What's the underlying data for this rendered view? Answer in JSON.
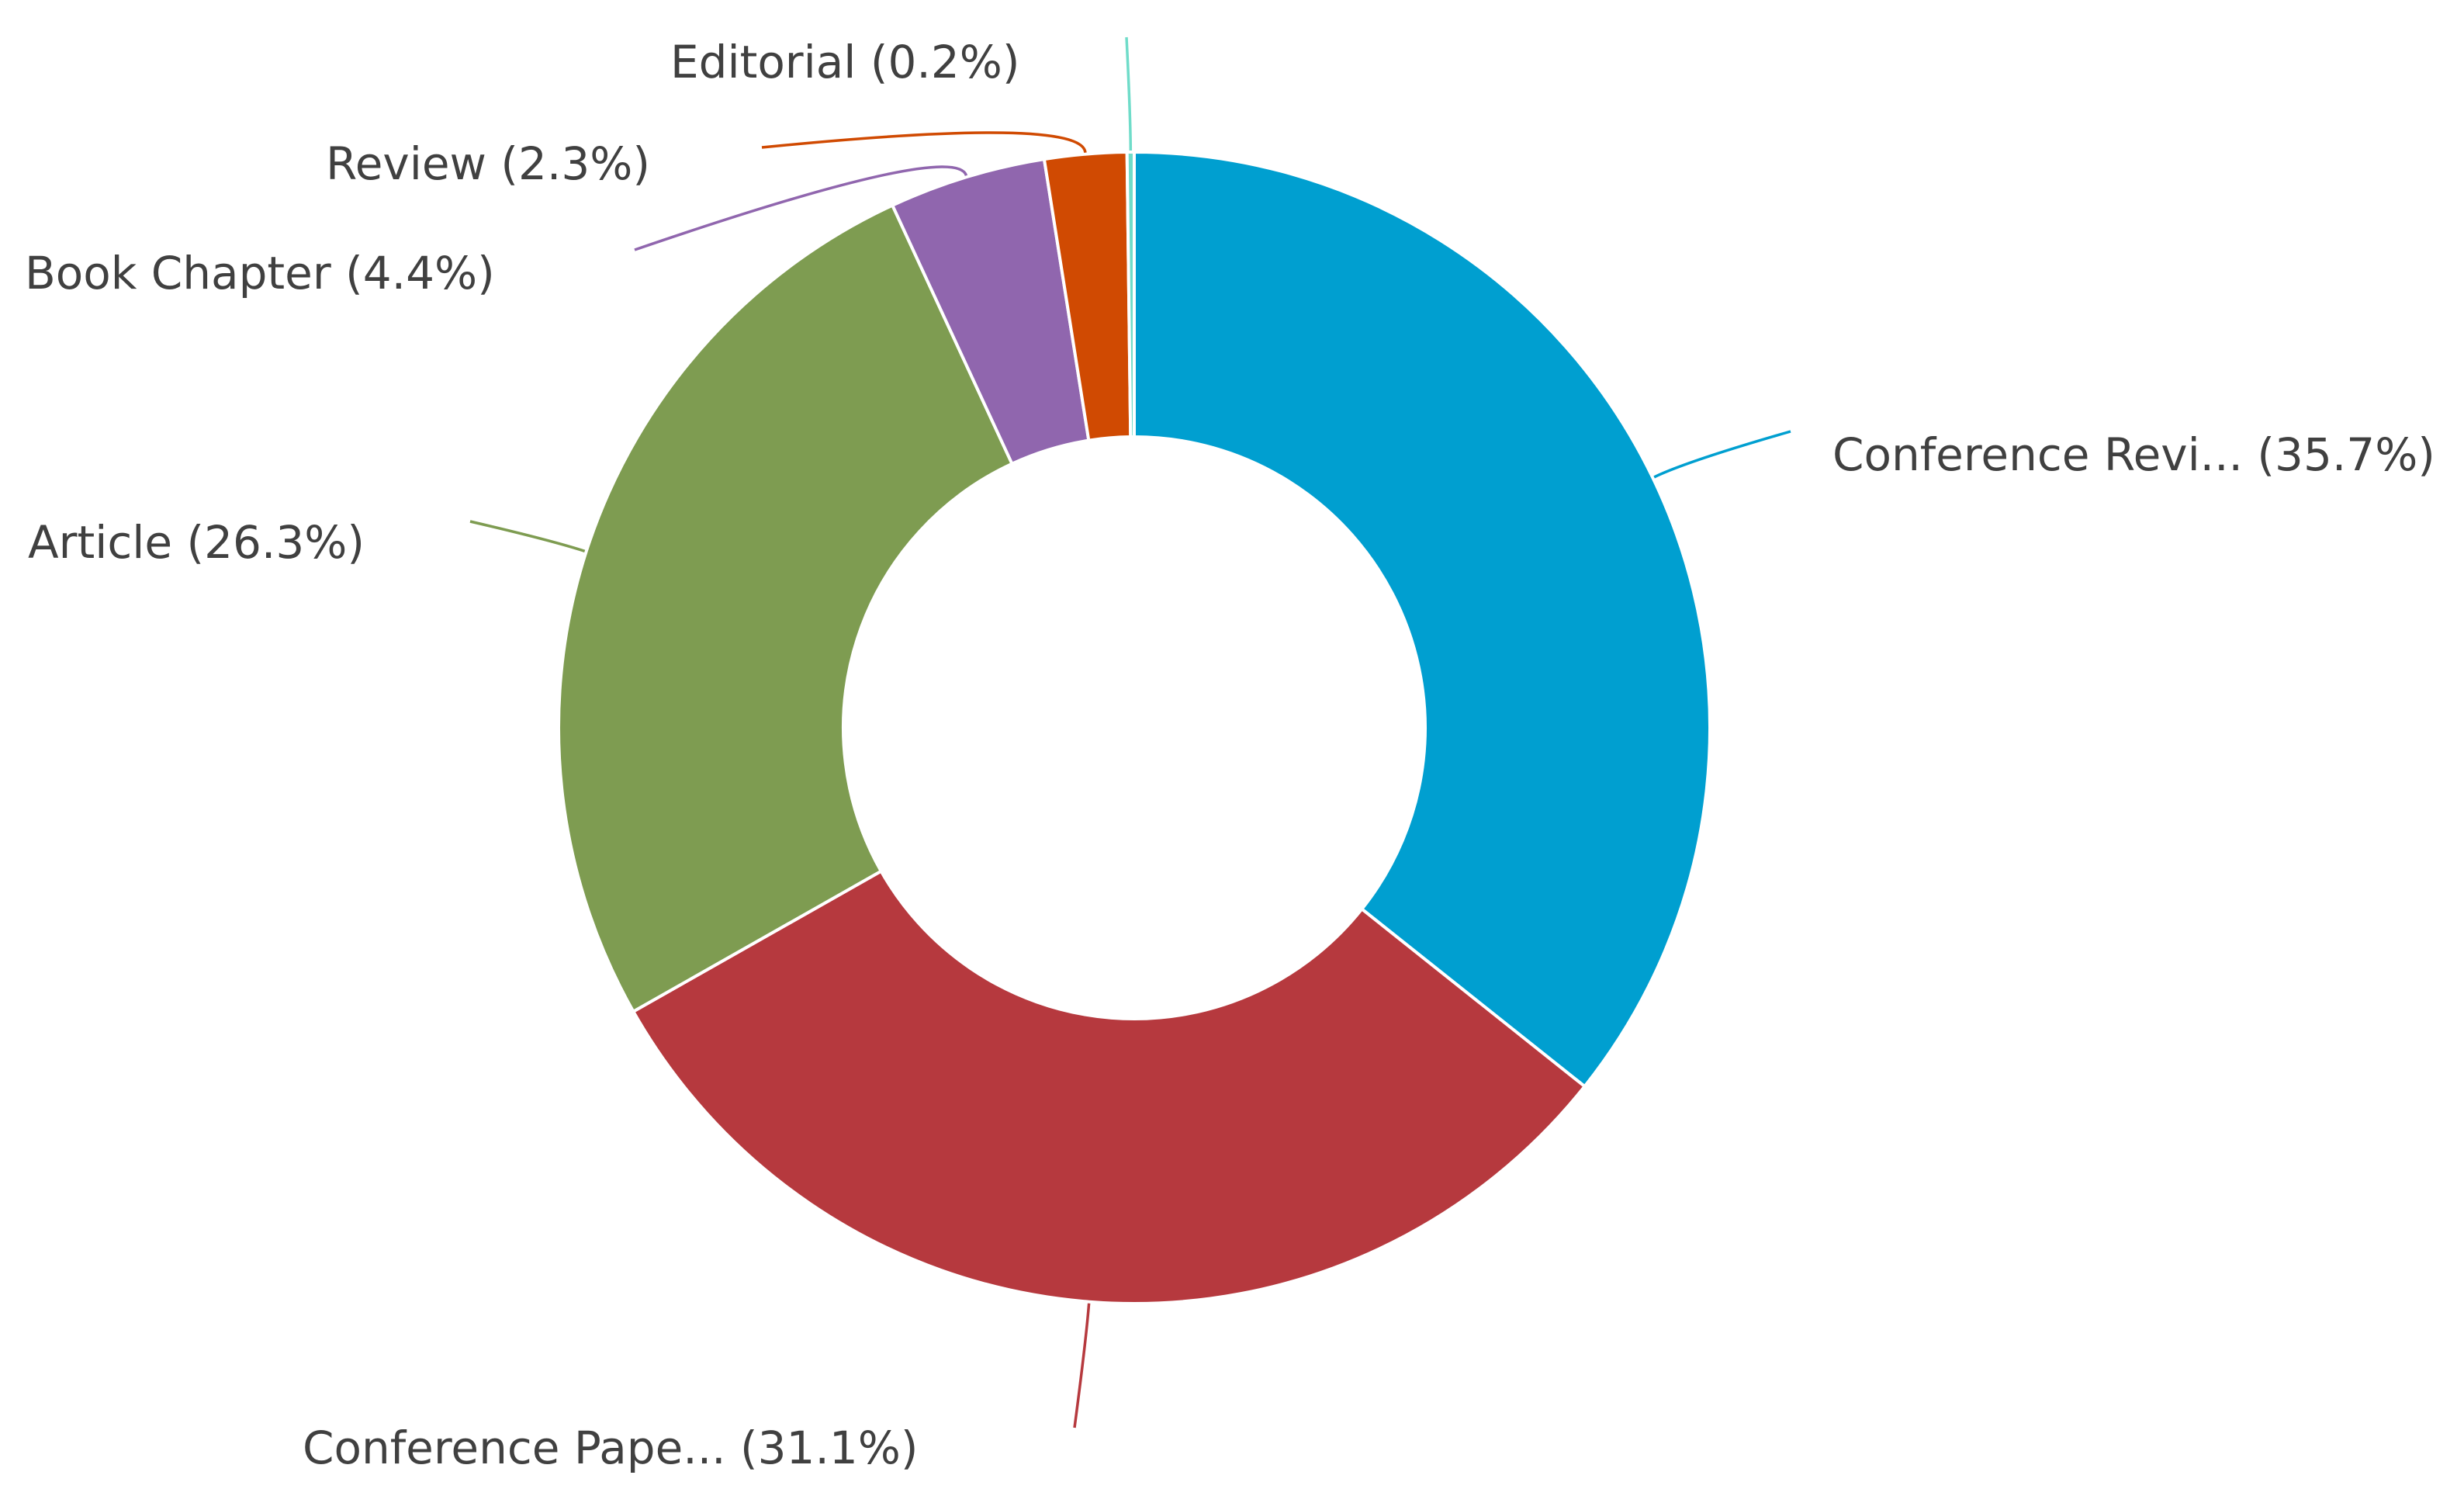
{
  "chart_data": {
    "type": "pie",
    "variant": "donut",
    "slices": [
      {
        "label": "Conference Revi... (35.7%)",
        "category": "Conference Revi...",
        "value": 35.7,
        "color": "#009fd0"
      },
      {
        "label": "Conference Pape... (31.1%)",
        "category": "Conference Pape...",
        "value": 31.1,
        "color": "#b6393e"
      },
      {
        "label": "Article (26.3%)",
        "category": "Article",
        "value": 26.3,
        "color": "#7e9c51"
      },
      {
        "label": "Book Chapter (4.4%)",
        "category": "Book Chapter",
        "value": 4.4,
        "color": "#9066ae"
      },
      {
        "label": "Review (2.3%)",
        "category": "Review",
        "value": 2.3,
        "color": "#d04a02"
      },
      {
        "label": "Editorial (0.2%)",
        "category": "Editorial",
        "value": 0.2,
        "color": "#6fdcc9"
      }
    ],
    "start": "top",
    "direction": "clockwise",
    "labels": "outside with leader lines",
    "legend": "none"
  }
}
